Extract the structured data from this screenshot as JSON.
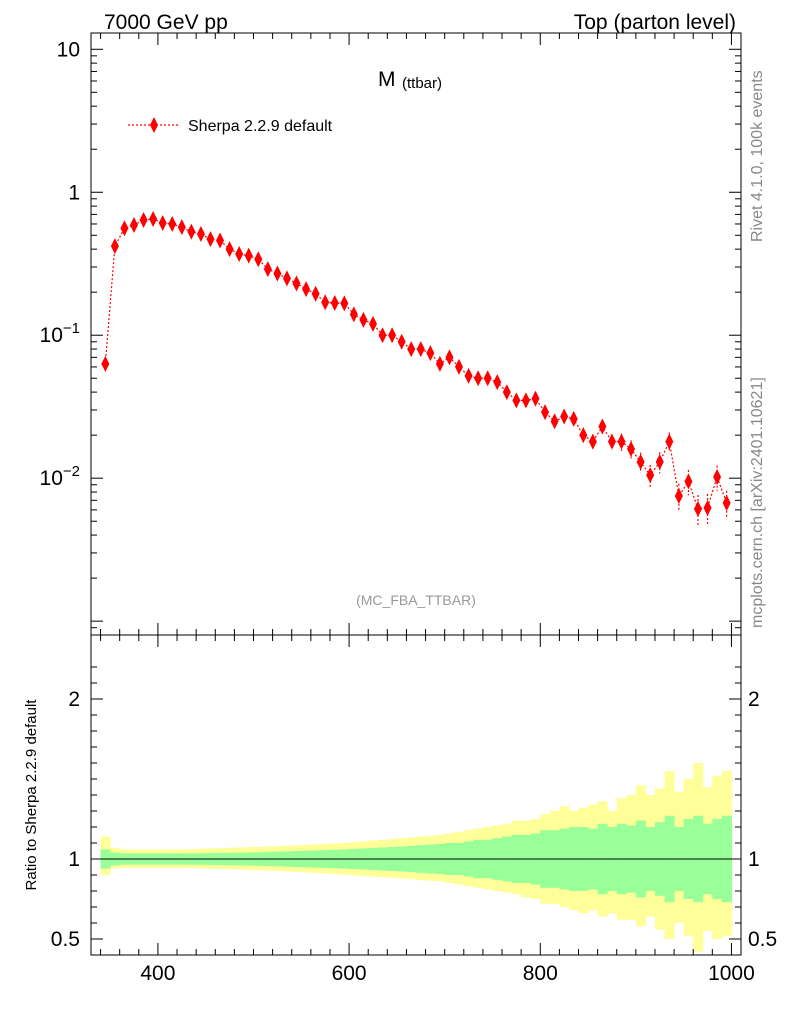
{
  "header": {
    "left": "7000 GeV pp",
    "right": "Top (parton level)"
  },
  "side": {
    "rivet": "Rivet 4.1.0,  100k events",
    "mcplots": "mcplots.cern.ch [arXiv:2401.10621]"
  },
  "chart_data": [
    {
      "type": "scatter",
      "title_main": "M",
      "title_sub": "(ttbar)",
      "analysis": "(MC_FBA_TTBAR)",
      "yscale": "log",
      "ylim": [
        0.0008,
        13
      ],
      "xlim": [
        330,
        1010
      ],
      "yticks": [
        {
          "value": 10,
          "base": "10",
          "exp": ""
        },
        {
          "value": 1,
          "base": "1",
          "exp": ""
        },
        {
          "value": 0.1,
          "base": "10",
          "exp": "−1"
        },
        {
          "value": 0.01,
          "base": "10",
          "exp": "−2"
        }
      ],
      "grid": false,
      "legend": {
        "label": "Sherpa 2.2.9 default",
        "position": "top-left",
        "color": "#ff0000"
      },
      "series": [
        {
          "name": "Sherpa 2.2.9 default",
          "color": "#ff0000",
          "x": [
            345,
            355,
            365,
            375,
            385,
            395,
            405,
            415,
            425,
            435,
            445,
            455,
            465,
            475,
            485,
            495,
            505,
            515,
            525,
            535,
            545,
            555,
            565,
            575,
            585,
            595,
            605,
            615,
            625,
            635,
            645,
            655,
            665,
            675,
            685,
            695,
            705,
            715,
            725,
            735,
            745,
            755,
            765,
            775,
            785,
            795,
            805,
            815,
            825,
            835,
            845,
            855,
            865,
            875,
            885,
            895,
            905,
            915,
            925,
            935,
            945,
            955,
            965,
            975,
            985,
            995
          ],
          "y": [
            0.063,
            0.42,
            0.56,
            0.59,
            0.64,
            0.65,
            0.61,
            0.6,
            0.57,
            0.53,
            0.51,
            0.47,
            0.46,
            0.4,
            0.37,
            0.36,
            0.34,
            0.29,
            0.27,
            0.25,
            0.23,
            0.21,
            0.195,
            0.17,
            0.168,
            0.167,
            0.14,
            0.128,
            0.12,
            0.1,
            0.1,
            0.09,
            0.08,
            0.08,
            0.075,
            0.063,
            0.07,
            0.06,
            0.052,
            0.05,
            0.05,
            0.047,
            0.04,
            0.035,
            0.035,
            0.036,
            0.029,
            0.025,
            0.027,
            0.026,
            0.02,
            0.018,
            0.023,
            0.018,
            0.018,
            0.016,
            0.013,
            0.0105,
            0.013,
            0.018,
            0.0075,
            0.0095,
            0.0061,
            0.0062,
            0.0102,
            0.0067
          ],
          "yerr_rel": [
            0.03,
            0.015,
            0.012,
            0.012,
            0.012,
            0.012,
            0.012,
            0.012,
            0.013,
            0.013,
            0.013,
            0.014,
            0.014,
            0.015,
            0.016,
            0.016,
            0.017,
            0.018,
            0.019,
            0.02,
            0.021,
            0.022,
            0.023,
            0.024,
            0.025,
            0.026,
            0.027,
            0.029,
            0.03,
            0.032,
            0.033,
            0.035,
            0.037,
            0.038,
            0.04,
            0.042,
            0.044,
            0.047,
            0.05,
            0.052,
            0.055,
            0.06,
            0.065,
            0.07,
            0.075,
            0.08,
            0.085,
            0.09,
            0.095,
            0.1,
            0.11,
            0.12,
            0.12,
            0.13,
            0.14,
            0.15,
            0.16,
            0.18,
            0.17,
            0.16,
            0.22,
            0.2,
            0.25,
            0.25,
            0.2,
            0.22
          ]
        }
      ]
    },
    {
      "type": "area",
      "ylabel": "Ratio to Sherpa 2.2.9 default",
      "xlabel": "",
      "xlim": [
        330,
        1010
      ],
      "ylim": [
        0.4,
        2.4
      ],
      "yticks": [
        0.5,
        1,
        2
      ],
      "xticks": [
        400,
        600,
        800,
        1000
      ],
      "reference": 1,
      "bands": {
        "inner_color": "#99ff99",
        "outer_color": "#ffff99",
        "x_edges": [
          340,
          350,
          360,
          370,
          380,
          390,
          400,
          410,
          420,
          430,
          440,
          450,
          460,
          470,
          480,
          490,
          500,
          510,
          520,
          530,
          540,
          550,
          560,
          570,
          580,
          590,
          600,
          610,
          620,
          630,
          640,
          650,
          660,
          670,
          680,
          690,
          700,
          710,
          720,
          730,
          740,
          750,
          760,
          770,
          780,
          790,
          800,
          810,
          820,
          830,
          840,
          850,
          860,
          870,
          880,
          890,
          900,
          910,
          920,
          930,
          940,
          950,
          960,
          970,
          980,
          990,
          1000
        ],
        "inner_up": [
          1.06,
          1.04,
          1.035,
          1.035,
          1.035,
          1.035,
          1.035,
          1.035,
          1.035,
          1.036,
          1.036,
          1.037,
          1.038,
          1.039,
          1.04,
          1.041,
          1.042,
          1.044,
          1.046,
          1.048,
          1.05,
          1.052,
          1.054,
          1.056,
          1.058,
          1.06,
          1.063,
          1.066,
          1.069,
          1.072,
          1.075,
          1.078,
          1.082,
          1.086,
          1.09,
          1.094,
          1.1,
          1.1,
          1.11,
          1.12,
          1.12,
          1.13,
          1.14,
          1.15,
          1.15,
          1.16,
          1.18,
          1.18,
          1.19,
          1.2,
          1.2,
          1.19,
          1.22,
          1.2,
          1.22,
          1.21,
          1.24,
          1.2,
          1.23,
          1.27,
          1.2,
          1.25,
          1.27,
          1.22,
          1.25,
          1.27
        ],
        "inner_dn": [
          0.94,
          0.96,
          0.965,
          0.965,
          0.965,
          0.965,
          0.965,
          0.965,
          0.965,
          0.964,
          0.964,
          0.963,
          0.962,
          0.961,
          0.96,
          0.959,
          0.958,
          0.956,
          0.954,
          0.952,
          0.95,
          0.948,
          0.946,
          0.944,
          0.942,
          0.94,
          0.937,
          0.934,
          0.931,
          0.928,
          0.925,
          0.922,
          0.918,
          0.914,
          0.91,
          0.906,
          0.9,
          0.9,
          0.89,
          0.88,
          0.88,
          0.87,
          0.86,
          0.85,
          0.85,
          0.84,
          0.82,
          0.82,
          0.81,
          0.8,
          0.8,
          0.81,
          0.78,
          0.8,
          0.78,
          0.79,
          0.76,
          0.8,
          0.77,
          0.73,
          0.8,
          0.75,
          0.73,
          0.78,
          0.75,
          0.73
        ],
        "outer_up": [
          1.14,
          1.07,
          1.06,
          1.06,
          1.06,
          1.06,
          1.06,
          1.06,
          1.06,
          1.062,
          1.064,
          1.066,
          1.068,
          1.07,
          1.072,
          1.074,
          1.076,
          1.078,
          1.08,
          1.083,
          1.086,
          1.089,
          1.092,
          1.095,
          1.098,
          1.1,
          1.105,
          1.11,
          1.115,
          1.12,
          1.125,
          1.13,
          1.135,
          1.14,
          1.145,
          1.15,
          1.16,
          1.17,
          1.18,
          1.19,
          1.2,
          1.21,
          1.22,
          1.24,
          1.24,
          1.25,
          1.28,
          1.3,
          1.33,
          1.3,
          1.32,
          1.34,
          1.36,
          1.3,
          1.38,
          1.4,
          1.46,
          1.4,
          1.44,
          1.55,
          1.42,
          1.5,
          1.6,
          1.45,
          1.52,
          1.55
        ],
        "outer_dn": [
          0.9,
          0.94,
          0.945,
          0.945,
          0.945,
          0.945,
          0.945,
          0.945,
          0.945,
          0.944,
          0.942,
          0.94,
          0.938,
          0.936,
          0.934,
          0.932,
          0.93,
          0.928,
          0.925,
          0.922,
          0.919,
          0.916,
          0.913,
          0.91,
          0.906,
          0.902,
          0.898,
          0.894,
          0.89,
          0.886,
          0.882,
          0.878,
          0.873,
          0.868,
          0.864,
          0.86,
          0.85,
          0.84,
          0.83,
          0.82,
          0.81,
          0.8,
          0.79,
          0.78,
          0.76,
          0.75,
          0.72,
          0.72,
          0.7,
          0.68,
          0.66,
          0.68,
          0.64,
          0.66,
          0.62,
          0.62,
          0.58,
          0.64,
          0.56,
          0.5,
          0.6,
          0.52,
          0.42,
          0.55,
          0.5,
          0.52
        ]
      }
    }
  ]
}
